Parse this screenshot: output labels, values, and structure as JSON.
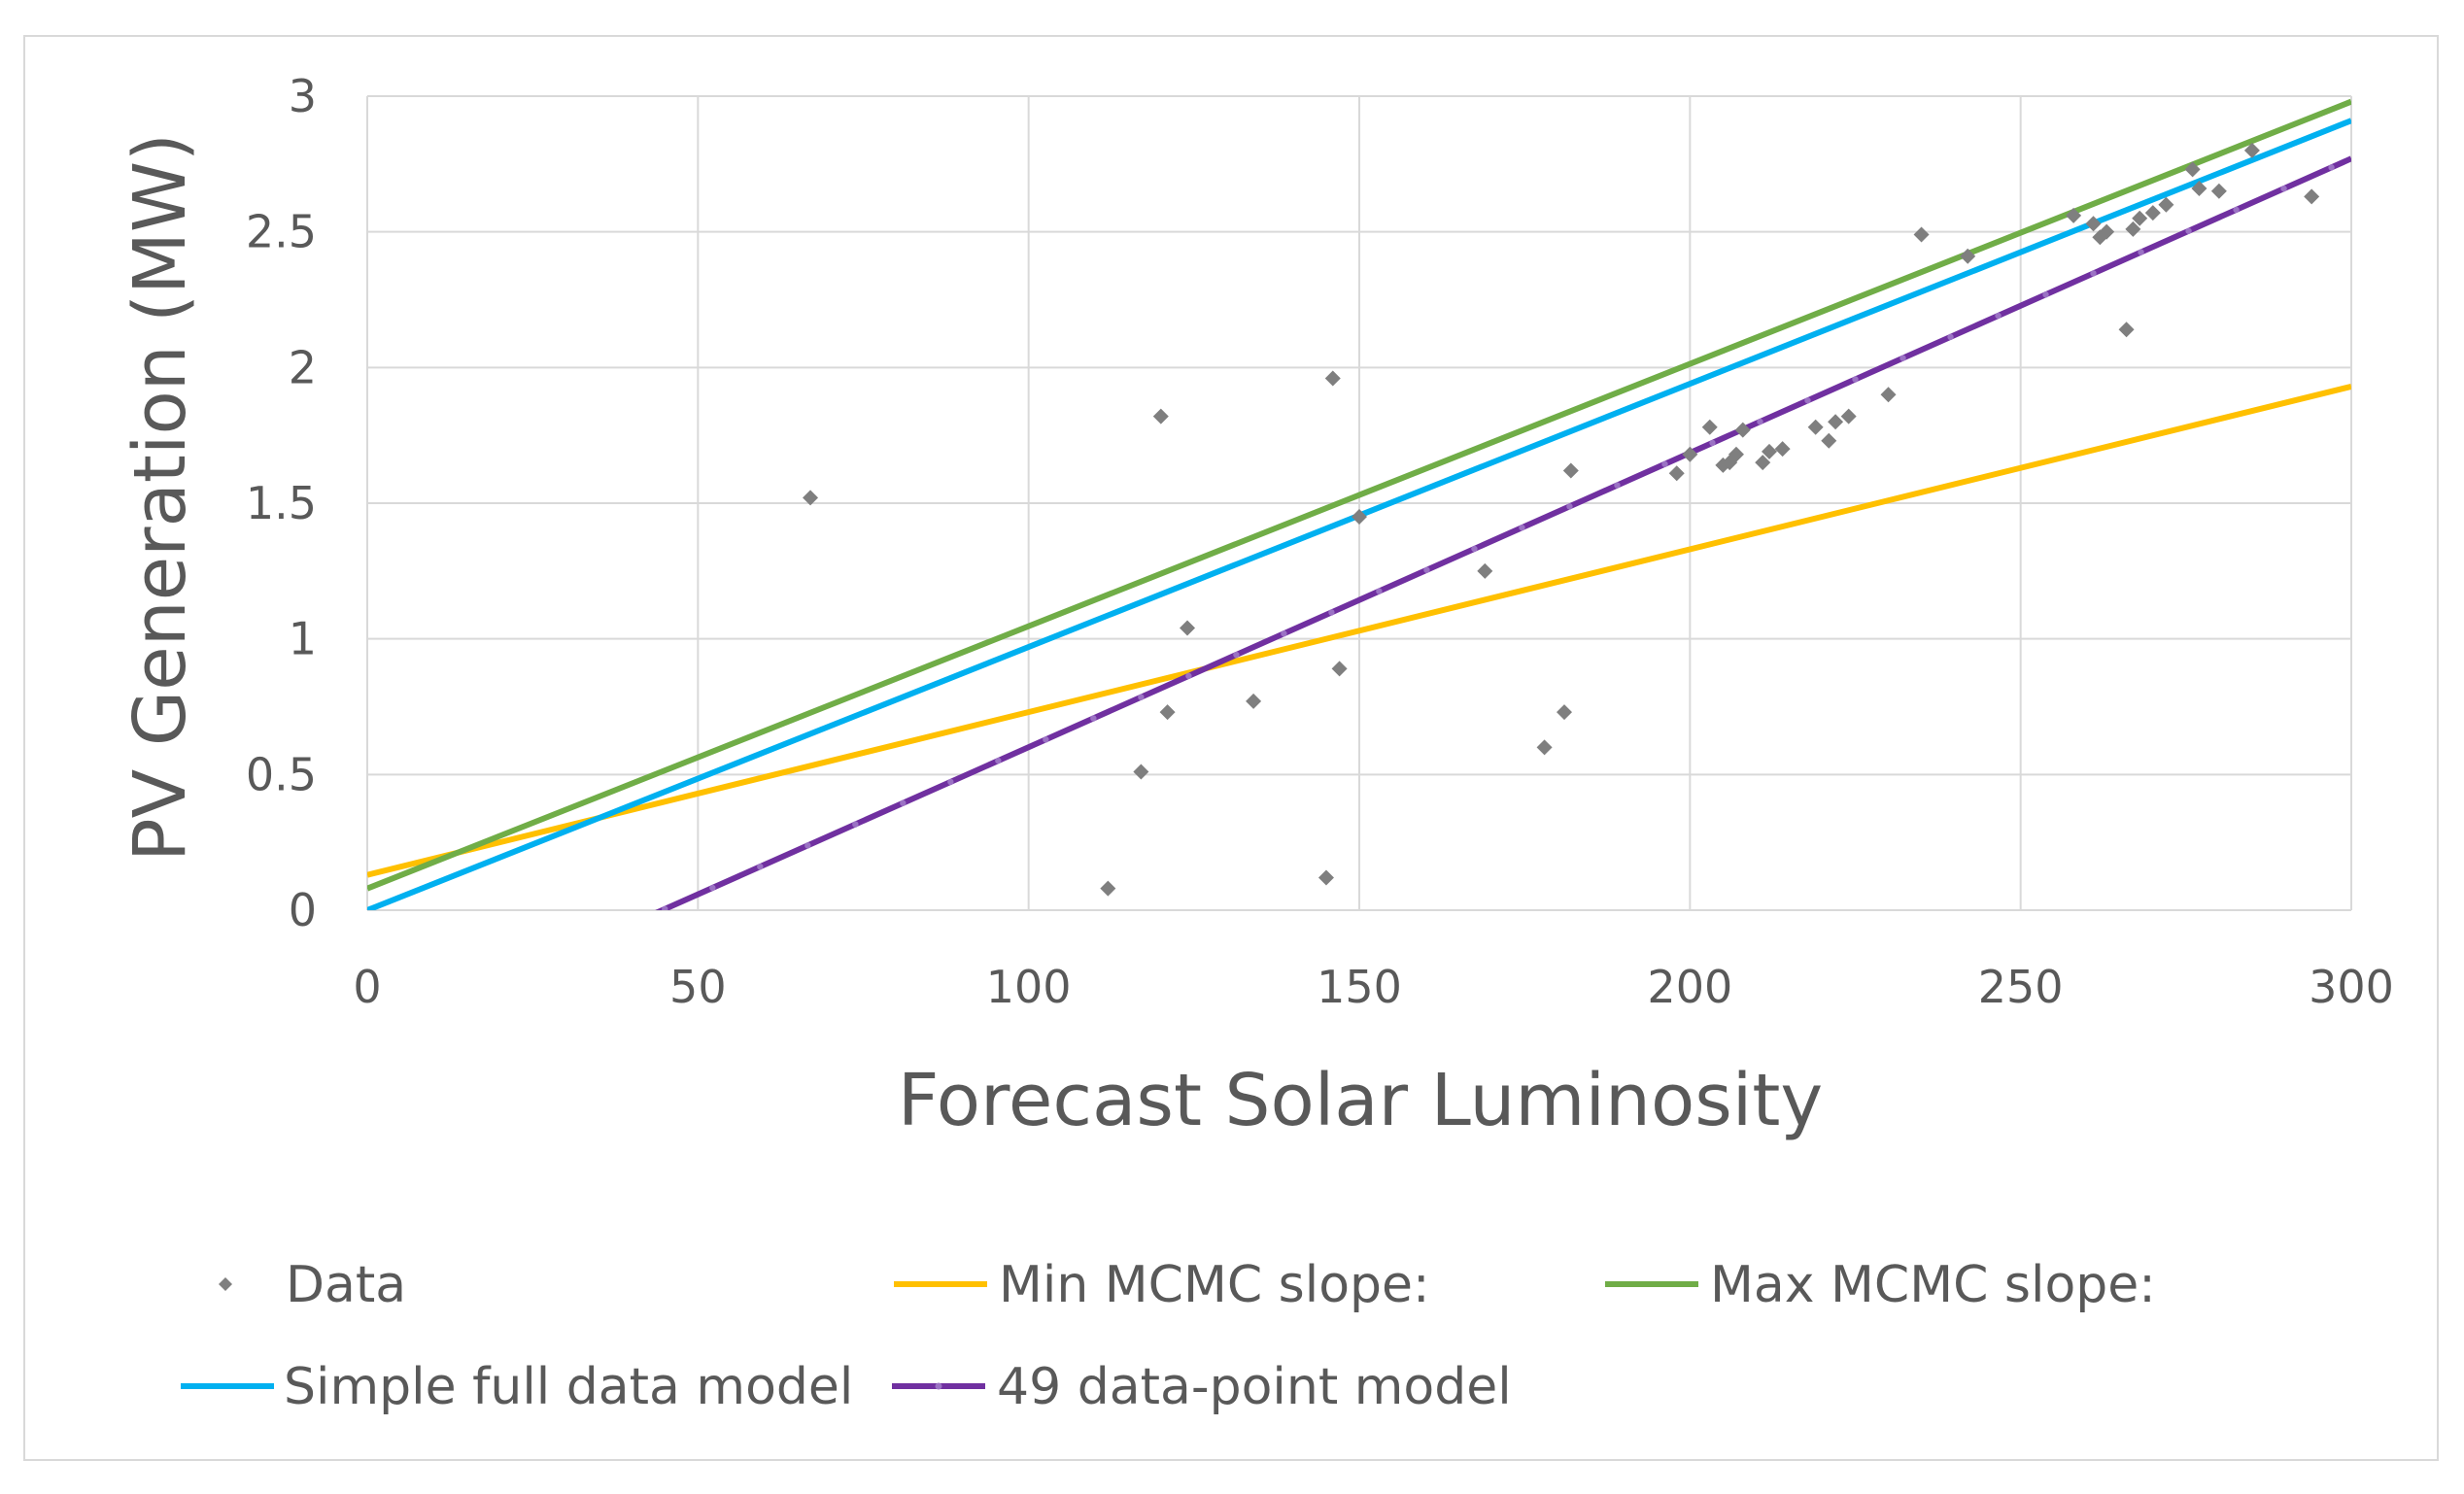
{
  "chart_data": {
    "type": "scatter",
    "title": "",
    "xlabel": "Forecast Solar Luminosity",
    "ylabel": "PV Generation (MW)",
    "xlim": [
      0,
      300
    ],
    "ylim": [
      0,
      3
    ],
    "xticks": [
      0,
      50,
      100,
      150,
      200,
      250,
      300
    ],
    "yticks": [
      0,
      0.5,
      1,
      1.5,
      2,
      2.5,
      3
    ],
    "xtick_labels": [
      "0",
      "50",
      "100",
      "150",
      "200",
      "250",
      "300"
    ],
    "ytick_labels": [
      "0",
      "0.5",
      "1",
      "1.5",
      "2",
      "2.5",
      "3"
    ],
    "grid": true,
    "legend_position": "bottom",
    "series": [
      {
        "name": "Data",
        "kind": "scatter",
        "color": "#7f7f7f",
        "points": [
          [
            67,
            1.52
          ],
          [
            112,
            0.08
          ],
          [
            117,
            0.51
          ],
          [
            120,
            1.82
          ],
          [
            121,
            0.73
          ],
          [
            124,
            1.04
          ],
          [
            134,
            0.77
          ],
          [
            145,
            0.12
          ],
          [
            146,
            1.96
          ],
          [
            147,
            0.89
          ],
          [
            150,
            1.45
          ],
          [
            169,
            1.25
          ],
          [
            178,
            0.6
          ],
          [
            181,
            0.73
          ],
          [
            182,
            1.62
          ],
          [
            198,
            1.61
          ],
          [
            200,
            1.68
          ],
          [
            203,
            1.78
          ],
          [
            205,
            1.64
          ],
          [
            206,
            1.65
          ],
          [
            207,
            1.68
          ],
          [
            208,
            1.77
          ],
          [
            211,
            1.65
          ],
          [
            212,
            1.69
          ],
          [
            214,
            1.7
          ],
          [
            219,
            1.78
          ],
          [
            221,
            1.73
          ],
          [
            222,
            1.8
          ],
          [
            224,
            1.82
          ],
          [
            230,
            1.9
          ],
          [
            235,
            2.49
          ],
          [
            242,
            2.41
          ],
          [
            258,
            2.56
          ],
          [
            261,
            2.53
          ],
          [
            262,
            2.48
          ],
          [
            263,
            2.5
          ],
          [
            266,
            2.14
          ],
          [
            267,
            2.51
          ],
          [
            268,
            2.55
          ],
          [
            270,
            2.57
          ],
          [
            272,
            2.6
          ],
          [
            276,
            2.73
          ],
          [
            277,
            2.66
          ],
          [
            280,
            2.65
          ],
          [
            285,
            2.8
          ],
          [
            294,
            2.63
          ]
        ]
      },
      {
        "name": "Min MCMC slope:",
        "kind": "line",
        "color": "#ffc000",
        "x": [
          0,
          300
        ],
        "y": [
          0.13,
          1.93
        ]
      },
      {
        "name": "Max MCMC slope:",
        "kind": "line",
        "color": "#70ad47",
        "x": [
          0,
          300
        ],
        "y": [
          0.08,
          2.98
        ]
      },
      {
        "name": "Simple full data model",
        "kind": "line",
        "color": "#00b0f0",
        "x": [
          0,
          300
        ],
        "y": [
          0.0,
          2.91
        ]
      },
      {
        "name": "49 data-point model",
        "kind": "line",
        "color": "#7030a0",
        "x": [
          40,
          300
        ],
        "y": [
          -0.05,
          2.77
        ]
      }
    ]
  }
}
